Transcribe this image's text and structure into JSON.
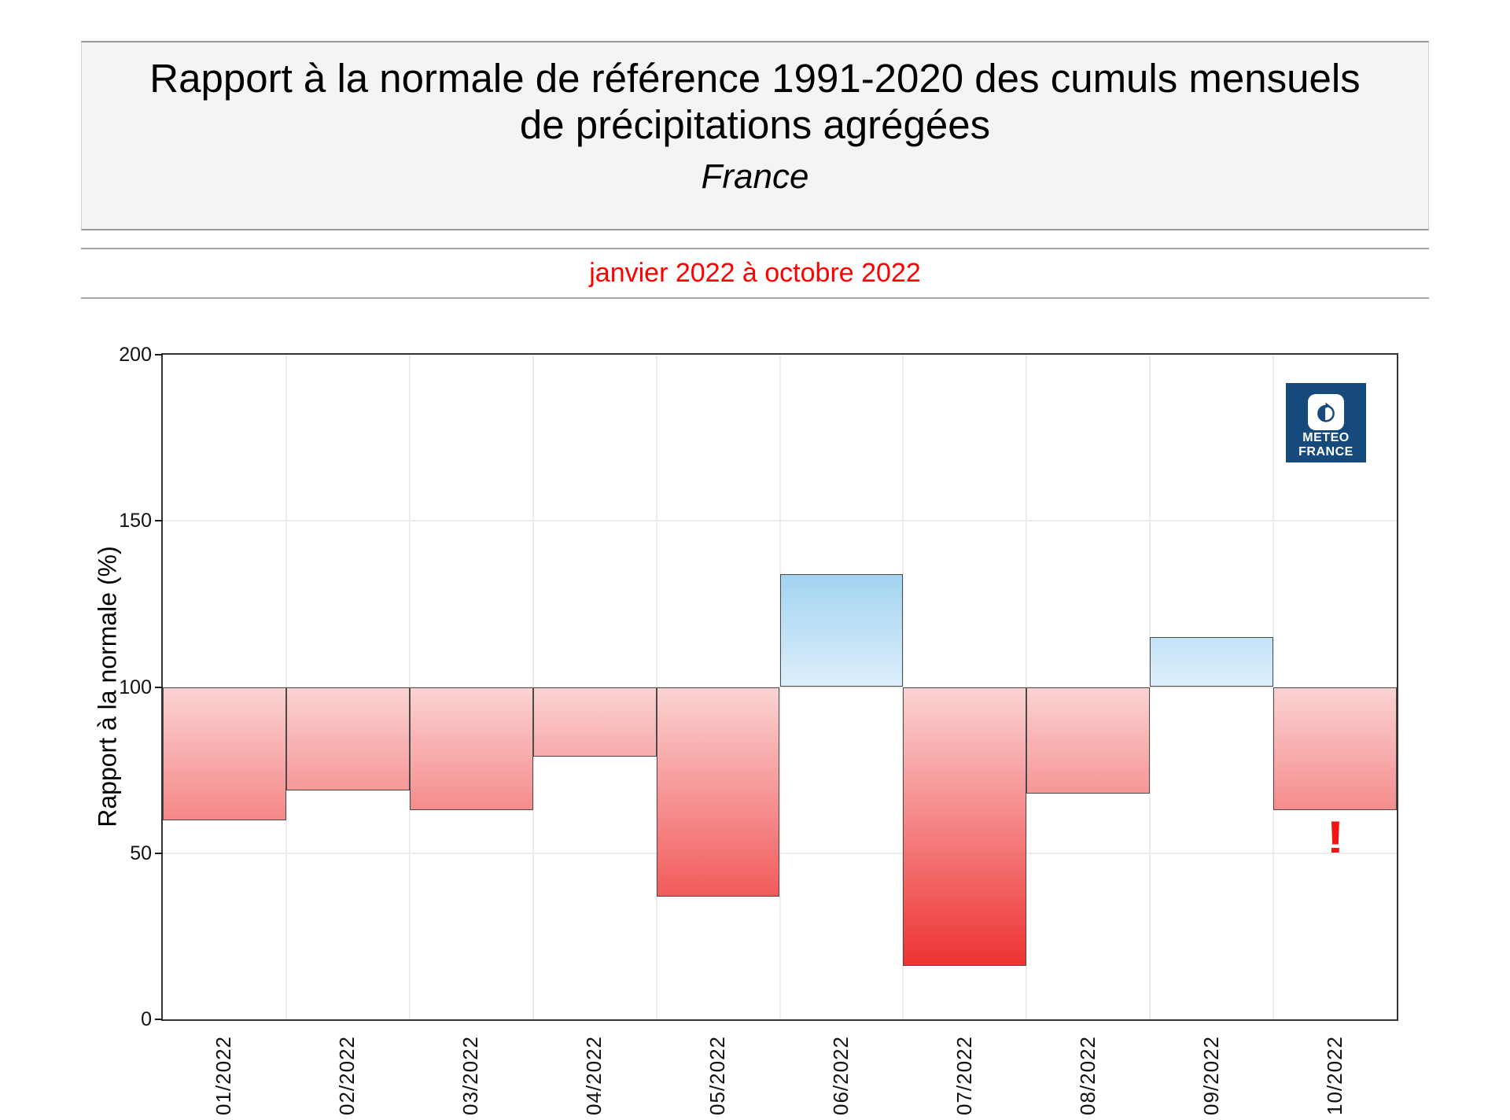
{
  "header": {
    "title_line1": "Rapport à la normale de référence 1991-2020 des cumuls mensuels",
    "title_line2": "de précipitations agrégées",
    "region": "France"
  },
  "subtitle": {
    "text": "janvier 2022 à octobre 2022",
    "color": "#ff0000"
  },
  "logo": {
    "line1": "METEO",
    "line2": "FRANCE",
    "bg_color": "#174a7c"
  },
  "alert": {
    "symbol": "!",
    "color": "#f01515",
    "month": "10/2022"
  },
  "chart_data": {
    "type": "bar",
    "title": "Rapport à la normale de référence 1991-2020 des cumuls mensuels de précipitations agrégées",
    "region": "France",
    "period": "janvier 2022 à octobre 2022",
    "categories": [
      "01/2022",
      "02/2022",
      "03/2022",
      "04/2022",
      "05/2022",
      "06/2022",
      "07/2022",
      "08/2022",
      "09/2022",
      "10/2022"
    ],
    "values": [
      60,
      69,
      63,
      79,
      37,
      134,
      16,
      68,
      115,
      63
    ],
    "baseline": 100,
    "ylabel": "Rapport à la normale (%)",
    "ylim": [
      0,
      200
    ],
    "yticks": [
      0,
      50,
      100,
      150,
      200
    ],
    "grid": true,
    "legend": "none",
    "annotation": {
      "category": "10/2022",
      "symbol": "!"
    },
    "colors": {
      "below_light": "#fbd3d3",
      "below_full": "#ec1414",
      "above_light": "#dceefb",
      "above_full": "#34a2de",
      "bar_border": "#4a4a4a",
      "grid": "#ececec",
      "axis": "#333333"
    }
  }
}
